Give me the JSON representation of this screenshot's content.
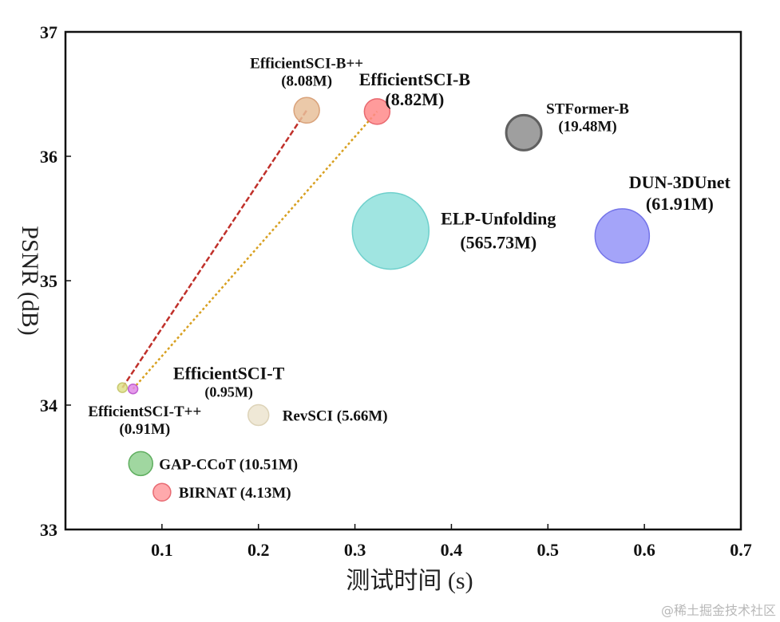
{
  "chart_data": {
    "type": "scatter",
    "subtype": "bubble",
    "title": "",
    "xlabel": "测试时间 (s)",
    "ylabel": "PSNR (dB)",
    "xlim": [
      0.0,
      0.7
    ],
    "ylim": [
      33,
      37
    ],
    "xticks": [
      0.1,
      0.2,
      0.3,
      0.4,
      0.5,
      0.6,
      0.7
    ],
    "xtick_labels": [
      "0.1",
      "0.2",
      "0.3",
      "0.4",
      "0.5",
      "0.6",
      "0.7"
    ],
    "yticks": [
      33,
      34,
      35,
      36,
      37
    ],
    "ytick_labels": [
      "33",
      "34",
      "35",
      "36",
      "37"
    ],
    "grid": false,
    "legend": "none",
    "points": [
      {
        "name": "EfficientSCI-B++",
        "params": "(8.08M)",
        "params_m": 8.08,
        "x": 0.25,
        "y": 36.37,
        "color": "#e8bf9a",
        "stroke": "#d9a27a",
        "label_pos": "above",
        "label_lines": [
          "EfficientSCI-B++",
          "(8.08M)"
        ]
      },
      {
        "name": "EfficientSCI-B",
        "params": "(8.82M)",
        "params_m": 8.82,
        "x": 0.323,
        "y": 36.36,
        "color": "#ff8a8a",
        "stroke": "#e8686f",
        "label_pos": "upper-right",
        "label_lines": [
          "EfficientSCI-B",
          "(8.82M)"
        ]
      },
      {
        "name": "STFormer-B",
        "params": "(19.48M)",
        "params_m": 19.48,
        "x": 0.475,
        "y": 36.19,
        "color": "#8e8e8e",
        "stroke": "#606060",
        "label_pos": "upper-right",
        "label_lines": [
          "STFormer-B",
          "(19.48M)"
        ]
      },
      {
        "name": "ELP-Unfolding",
        "params": "(565.73M)",
        "params_m": 565.73,
        "x": 0.337,
        "y": 35.4,
        "color": "#8fe0dc",
        "stroke": "#6fd0cc",
        "label_pos": "right",
        "label_lines": [
          "ELP-Unfolding",
          "(565.73M)"
        ]
      },
      {
        "name": "DUN-3DUnet",
        "params": "(61.91M)",
        "params_m": 61.91,
        "x": 0.577,
        "y": 35.36,
        "color": "#9494f8",
        "stroke": "#7474e8",
        "label_pos": "upper-right",
        "label_lines": [
          "DUN-3DUnet",
          "(61.91M)"
        ]
      },
      {
        "name": "EfficientSCI-T++",
        "params": "(0.91M)",
        "params_m": 0.91,
        "x": 0.059,
        "y": 34.14,
        "color": "#dfe08a",
        "stroke": "#c8c870",
        "label_pos": "below",
        "label_lines": [
          "EfficientSCI-T++",
          "(0.91M)"
        ]
      },
      {
        "name": "EfficientSCI-T",
        "params": "(0.95M)",
        "params_m": 0.95,
        "x": 0.07,
        "y": 34.13,
        "color": "#e08ae8",
        "stroke": "#c060d0",
        "label_pos": "upper-right",
        "label_lines": [
          "EfficientSCI-T",
          "(0.95M)"
        ]
      },
      {
        "name": "RevSCI",
        "params": "(5.66M)",
        "params_m": 5.66,
        "x": 0.2,
        "y": 33.92,
        "color": "#ece4cf",
        "stroke": "#ddd3b8",
        "label_pos": "right",
        "label_lines": [
          "RevSCI (5.66M)"
        ]
      },
      {
        "name": "GAP-CCoT",
        "params": "(10.51M)",
        "params_m": 10.51,
        "x": 0.078,
        "y": 33.53,
        "color": "#8fd08f",
        "stroke": "#5fae5f",
        "label_pos": "right",
        "label_lines": [
          "GAP-CCoT (10.51M)"
        ]
      },
      {
        "name": "BIRNAT",
        "params": "(4.13M)",
        "params_m": 4.13,
        "x": 0.1,
        "y": 33.3,
        "color": "#ff9a9e",
        "stroke": "#e86a72",
        "label_pos": "right",
        "label_lines": [
          "BIRNAT  (4.13M)"
        ]
      }
    ],
    "connectors": [
      {
        "from": "EfficientSCI-T++",
        "to": "EfficientSCI-B++",
        "style": "dashed",
        "color": "#c0302a"
      },
      {
        "from": "EfficientSCI-T",
        "to": "EfficientSCI-B",
        "style": "dotted",
        "color": "#d8a020"
      }
    ]
  },
  "watermark": "@稀土掘金技术社区"
}
